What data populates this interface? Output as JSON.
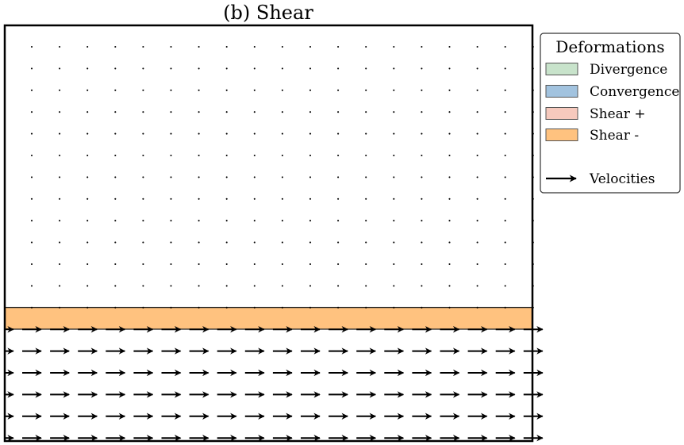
{
  "chart_data": {
    "type": "quiver",
    "title": "(b) Shear",
    "xlabel": "",
    "ylabel": "",
    "grid": false,
    "axis_ticks": false,
    "legend_placement": "outside-right-top",
    "grid_points": {
      "columns": 19,
      "rows": 20
    },
    "field": {
      "rows_with_zero_velocity": 13,
      "rows_with_velocity": 7,
      "velocity_direction": "east",
      "velocity_u": 1.0,
      "velocity_v": 0.0
    },
    "shaded_regions": [
      {
        "category": "Shear -",
        "row_span": [
          12,
          13
        ],
        "color": "#ffc27f"
      }
    ],
    "legend": {
      "title": "Deformations",
      "entries": [
        {
          "label": "Divergence",
          "color": "#c8e3cb"
        },
        {
          "label": "Convergence",
          "color": "#a2c3df"
        },
        {
          "label": "Shear +",
          "color": "#f6c9bd"
        },
        {
          "label": "Shear -",
          "color": "#ffc27f"
        },
        {
          "label": "Velocities",
          "kind": "arrow"
        }
      ]
    }
  },
  "colors": {
    "frame": "#000000",
    "arrow": "#000000",
    "dot": "#000000"
  }
}
